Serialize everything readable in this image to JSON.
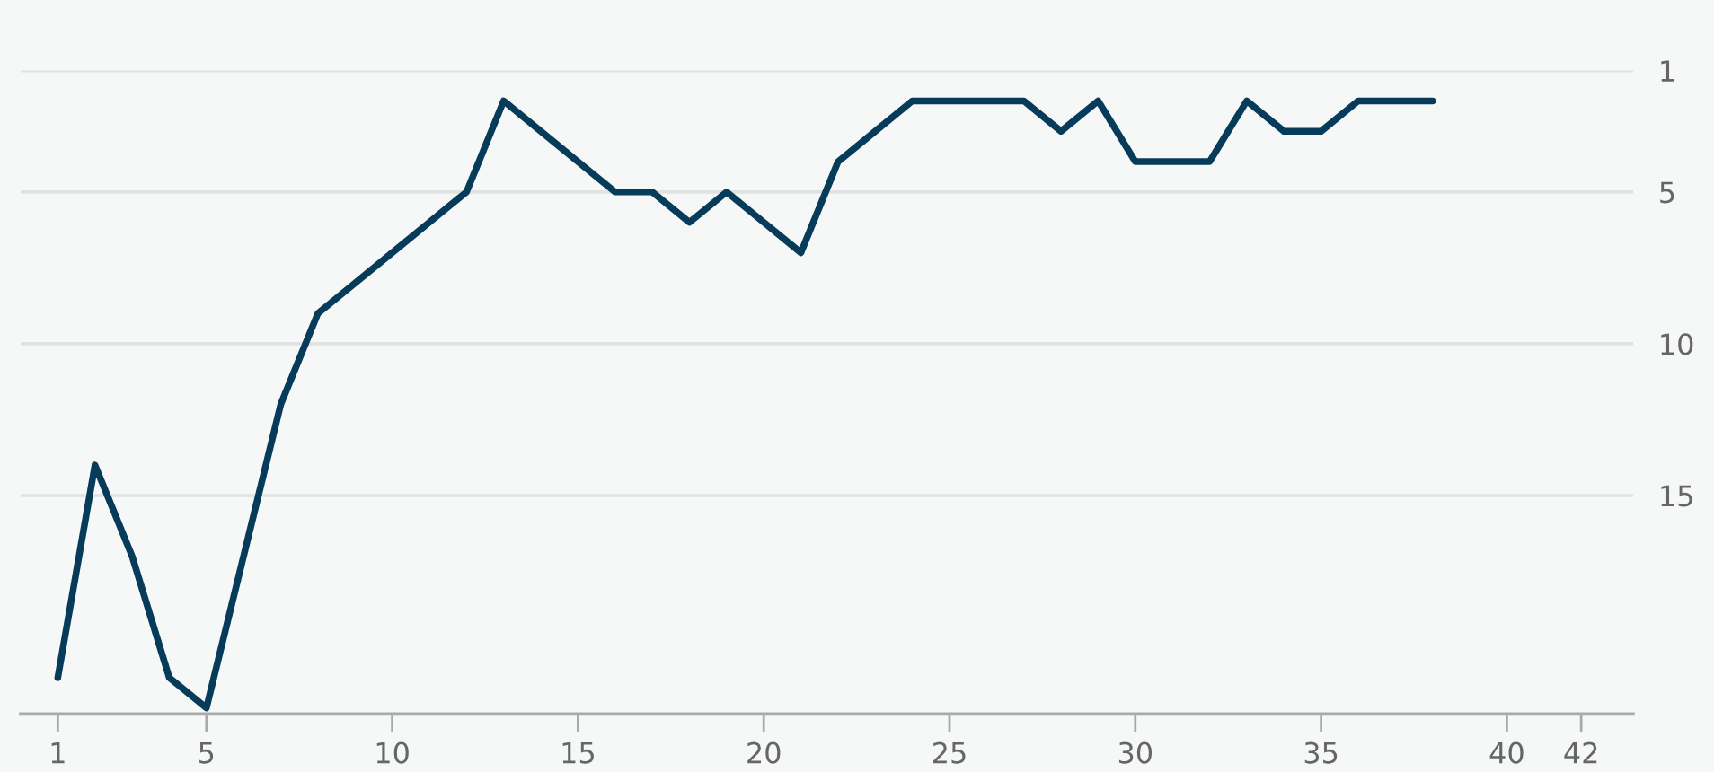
{
  "chart_data": {
    "type": "line",
    "x": [
      1,
      2,
      3,
      4,
      5,
      6,
      7,
      8,
      9,
      10,
      11,
      12,
      13,
      14,
      15,
      16,
      17,
      18,
      19,
      20,
      21,
      22,
      23,
      24,
      25,
      26,
      27,
      28,
      29,
      30,
      31,
      32,
      33,
      34,
      35,
      36,
      37,
      38
    ],
    "series": [
      {
        "color": "#073b5a",
        "values": [
          21,
          14,
          17,
          21,
          22,
          17,
          12,
          9,
          8,
          7,
          6,
          5,
          2,
          3,
          4,
          5,
          5,
          6,
          5,
          6,
          7,
          4,
          3,
          2,
          2,
          2,
          2,
          3,
          2,
          4,
          4,
          4,
          2,
          3,
          3,
          2,
          2,
          2
        ]
      }
    ],
    "xlim": [
      0,
      43.4
    ],
    "xticks": [
      1,
      5,
      10,
      15,
      20,
      25,
      30,
      35,
      40,
      42
    ],
    "ylim": [
      22.2,
      1
    ],
    "yticks": [
      1,
      5,
      10,
      15
    ],
    "grid": "y",
    "marker": "none",
    "line_style": "solid"
  }
}
